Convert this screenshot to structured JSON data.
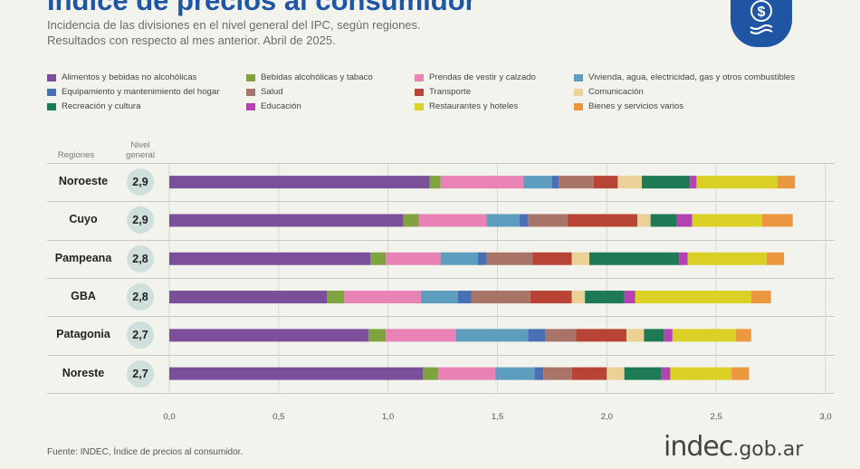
{
  "header": {
    "title": "Índice de precios al consumidor",
    "subtitle_line1": "Incidencia de las divisiones en el nivel general del IPC, según regiones.",
    "subtitle_line2": "Resultados con respecto al mes anterior. Abril de 2025."
  },
  "table_header": {
    "regions": "Regiones",
    "level_line1": "Nivel",
    "level_line2": "general"
  },
  "footer": {
    "source": "Fuente: INDEC, Índice de precios al consumidor.",
    "brand_main": "indec",
    "brand_ext": ".gob.ar"
  },
  "logo_icon": "dollar-sign-icon",
  "chart_data": {
    "type": "bar",
    "orientation": "horizontal",
    "stacked": true,
    "xlim": [
      0,
      3.0
    ],
    "x_ticks": [
      "0,0",
      "0,5",
      "1,0",
      "1,5",
      "2,0",
      "2,5",
      "3,0"
    ],
    "grid": "vertical",
    "legend_position": "top",
    "categories": [
      "Noroeste",
      "Cuyo",
      "Pampeana",
      "GBA",
      "Patagonia",
      "Noreste"
    ],
    "totals": [
      "2,9",
      "2,9",
      "2,8",
      "2,8",
      "2,7",
      "2,7"
    ],
    "series": [
      {
        "name": "Alimentos y bebidas no alcohólicas",
        "color": "#7b4f9a",
        "values": [
          1.19,
          1.07,
          0.92,
          0.72,
          0.91,
          1.16
        ]
      },
      {
        "name": "Bebidas alcohólicas y tabaco",
        "color": "#7fa33f",
        "values": [
          0.05,
          0.07,
          0.07,
          0.08,
          0.08,
          0.07
        ]
      },
      {
        "name": "Prendas de vestir y calzado",
        "color": "#e983b5",
        "values": [
          0.38,
          0.31,
          0.25,
          0.35,
          0.32,
          0.26
        ]
      },
      {
        "name": "Vivienda, agua, electricidad, gas y otros combustibles",
        "color": "#5d9ebe",
        "values": [
          0.13,
          0.15,
          0.17,
          0.17,
          0.33,
          0.18
        ]
      },
      {
        "name": "Equipamiento y mantenimiento del hogar",
        "color": "#4a6fb5",
        "values": [
          0.03,
          0.04,
          0.04,
          0.06,
          0.08,
          0.04
        ]
      },
      {
        "name": "Salud",
        "color": "#a87468",
        "values": [
          0.16,
          0.18,
          0.21,
          0.27,
          0.14,
          0.13
        ]
      },
      {
        "name": "Transporte",
        "color": "#b84435",
        "values": [
          0.11,
          0.32,
          0.18,
          0.19,
          0.23,
          0.16
        ]
      },
      {
        "name": "Comunicación",
        "color": "#ecd196",
        "values": [
          0.11,
          0.06,
          0.08,
          0.06,
          0.08,
          0.08
        ]
      },
      {
        "name": "Recreación y cultura",
        "color": "#1d7a55",
        "values": [
          0.22,
          0.12,
          0.41,
          0.18,
          0.09,
          0.17
        ]
      },
      {
        "name": "Educación",
        "color": "#b442b3",
        "values": [
          0.03,
          0.07,
          0.04,
          0.05,
          0.04,
          0.04
        ]
      },
      {
        "name": "Restaurantes y hoteles",
        "color": "#dbd025",
        "values": [
          0.37,
          0.32,
          0.36,
          0.53,
          0.29,
          0.28
        ]
      },
      {
        "name": "Bienes y servicios varios",
        "color": "#eb9740",
        "values": [
          0.08,
          0.14,
          0.08,
          0.09,
          0.07,
          0.08
        ]
      }
    ]
  }
}
